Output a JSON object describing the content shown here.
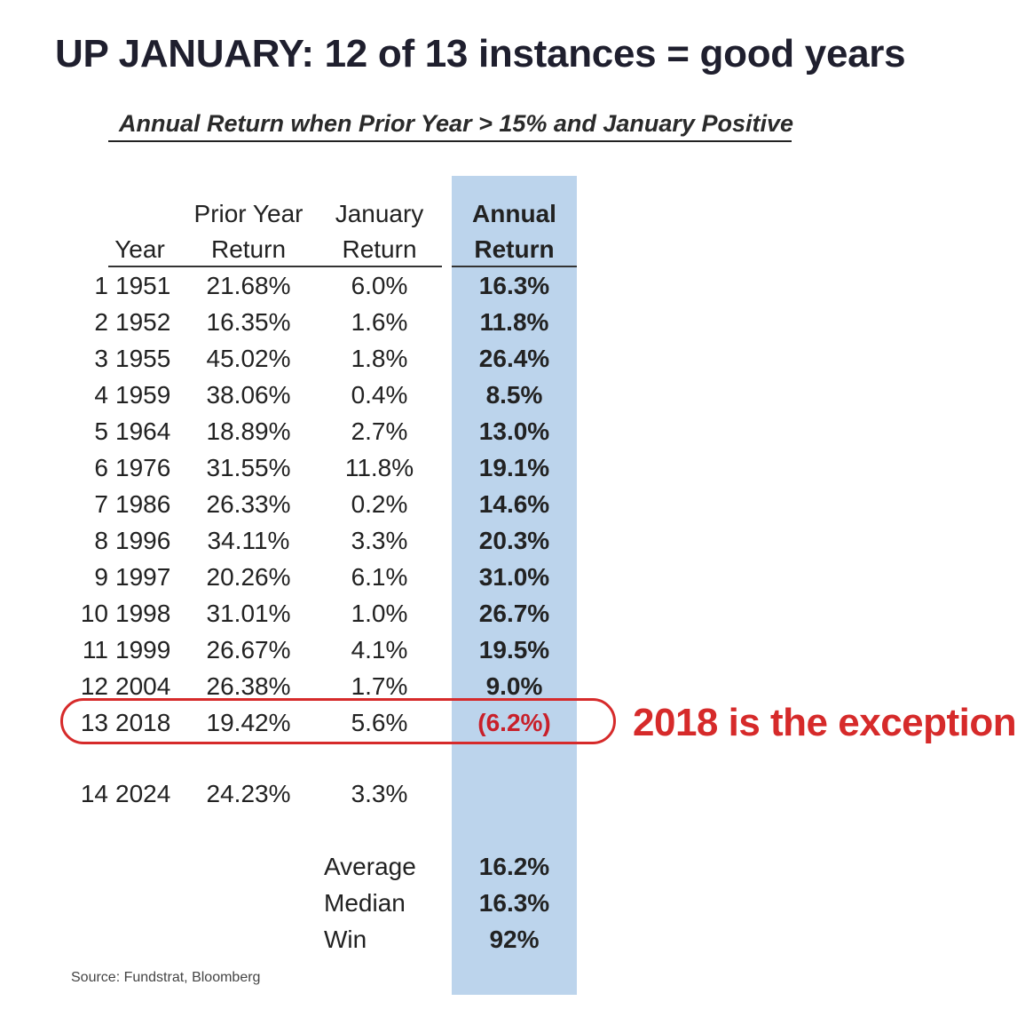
{
  "title": "UP JANUARY: 12 of 13 instances = good years",
  "subtitle": "Annual Return when Prior Year > 15% and January Positive",
  "columns": {
    "year": [
      "Year"
    ],
    "prior": [
      "Prior Year",
      "Return"
    ],
    "january": [
      "January",
      "Return"
    ],
    "annual": [
      "Annual",
      "Return"
    ]
  },
  "rows": [
    {
      "n": "1",
      "year": "1951",
      "prior": "21.68%",
      "january": "6.0%",
      "annual": "16.3%"
    },
    {
      "n": "2",
      "year": "1952",
      "prior": "16.35%",
      "january": "1.6%",
      "annual": "11.8%"
    },
    {
      "n": "3",
      "year": "1955",
      "prior": "45.02%",
      "january": "1.8%",
      "annual": "26.4%"
    },
    {
      "n": "4",
      "year": "1959",
      "prior": "38.06%",
      "january": "0.4%",
      "annual": "8.5%"
    },
    {
      "n": "5",
      "year": "1964",
      "prior": "18.89%",
      "january": "2.7%",
      "annual": "13.0%"
    },
    {
      "n": "6",
      "year": "1976",
      "prior": "31.55%",
      "january": "11.8%",
      "annual": "19.1%"
    },
    {
      "n": "7",
      "year": "1986",
      "prior": "26.33%",
      "january": "0.2%",
      "annual": "14.6%"
    },
    {
      "n": "8",
      "year": "1996",
      "prior": "34.11%",
      "january": "3.3%",
      "annual": "20.3%"
    },
    {
      "n": "9",
      "year": "1997",
      "prior": "20.26%",
      "january": "6.1%",
      "annual": "31.0%"
    },
    {
      "n": "10",
      "year": "1998",
      "prior": "31.01%",
      "january": "1.0%",
      "annual": "26.7%"
    },
    {
      "n": "11",
      "year": "1999",
      "prior": "26.67%",
      "january": "4.1%",
      "annual": "19.5%"
    },
    {
      "n": "12",
      "year": "2004",
      "prior": "26.38%",
      "january": "1.7%",
      "annual": "9.0%"
    },
    {
      "n": "13",
      "year": "2018",
      "prior": "19.42%",
      "january": "5.6%",
      "annual": "(6.2%)",
      "exception": true
    },
    {
      "n": "14",
      "year": "2024",
      "prior": "24.23%",
      "january": "3.3%",
      "annual": ""
    }
  ],
  "summary": [
    {
      "label": "Average",
      "value": "16.2%"
    },
    {
      "label": "Median",
      "value": "16.3%"
    },
    {
      "label": "Win",
      "value": "92%"
    }
  ],
  "annotation": "2018 is the exception",
  "source": "Source: Fundstrat, Bloomberg",
  "colors": {
    "highlight_column": "#bcd4ec",
    "exception": "#d62a2a"
  },
  "chart_data": {
    "type": "table",
    "title": "UP JANUARY: 12 of 13 instances = good years",
    "subtitle": "Annual Return when Prior Year > 15% and January Positive",
    "columns": [
      "Year",
      "Prior Year Return",
      "January Return",
      "Annual Return"
    ],
    "rows": [
      [
        "1951",
        21.68,
        6.0,
        16.3
      ],
      [
        "1952",
        16.35,
        1.6,
        11.8
      ],
      [
        "1955",
        45.02,
        1.8,
        26.4
      ],
      [
        "1959",
        38.06,
        0.4,
        8.5
      ],
      [
        "1964",
        18.89,
        2.7,
        13.0
      ],
      [
        "1976",
        31.55,
        11.8,
        19.1
      ],
      [
        "1986",
        26.33,
        0.2,
        14.6
      ],
      [
        "1996",
        34.11,
        3.3,
        20.3
      ],
      [
        "1997",
        20.26,
        6.1,
        31.0
      ],
      [
        "1998",
        31.01,
        1.0,
        26.7
      ],
      [
        "1999",
        26.67,
        4.1,
        19.5
      ],
      [
        "2004",
        26.38,
        1.7,
        9.0
      ],
      [
        "2018",
        19.42,
        5.6,
        -6.2
      ],
      [
        "2024",
        24.23,
        3.3,
        null
      ]
    ],
    "summary": {
      "Average": 16.2,
      "Median": 16.3,
      "Win": 92
    }
  }
}
